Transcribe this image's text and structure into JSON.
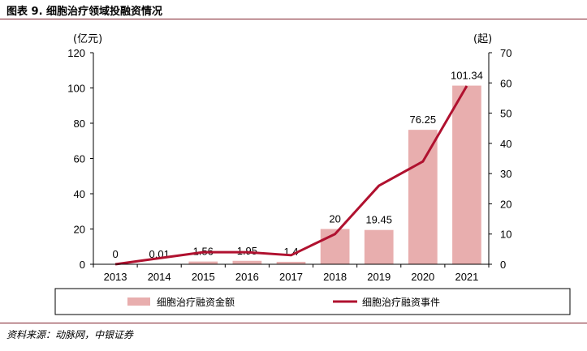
{
  "figure": {
    "title": "图表 9. 细胞治疗领域投融资情况",
    "source": "资料来源：动脉网，中银证券"
  },
  "chart_data": {
    "type": "bar",
    "categories": [
      "2013",
      "2014",
      "2015",
      "2016",
      "2017",
      "2018",
      "2019",
      "2020",
      "2021"
    ],
    "series": [
      {
        "name": "细胞治疗融资金额",
        "type": "bar",
        "axis": "left",
        "values": [
          0,
          0.01,
          1.56,
          1.95,
          1.4,
          20,
          19.45,
          76.25,
          101.34
        ],
        "labels": [
          "0",
          "0.01",
          "1.56",
          "1.95",
          "1.4",
          "20",
          "19.45",
          "76.25",
          "101.34"
        ],
        "color": "#e8aeae"
      },
      {
        "name": "细胞治疗融资事件",
        "type": "line",
        "axis": "right",
        "values": [
          0,
          2,
          4,
          4,
          3,
          10,
          26,
          34,
          59
        ],
        "color": "#b0112f"
      }
    ],
    "left_axis": {
      "unit": "(亿元)",
      "ylim": [
        0,
        120
      ],
      "ticks": [
        "0",
        "20",
        "40",
        "60",
        "80",
        "100",
        "120"
      ]
    },
    "right_axis": {
      "unit": "(起)",
      "ylim": [
        0,
        70
      ],
      "ticks": [
        "0",
        "10",
        "20",
        "30",
        "40",
        "50",
        "60",
        "70"
      ]
    },
    "grid": false,
    "legend": "bottom"
  }
}
